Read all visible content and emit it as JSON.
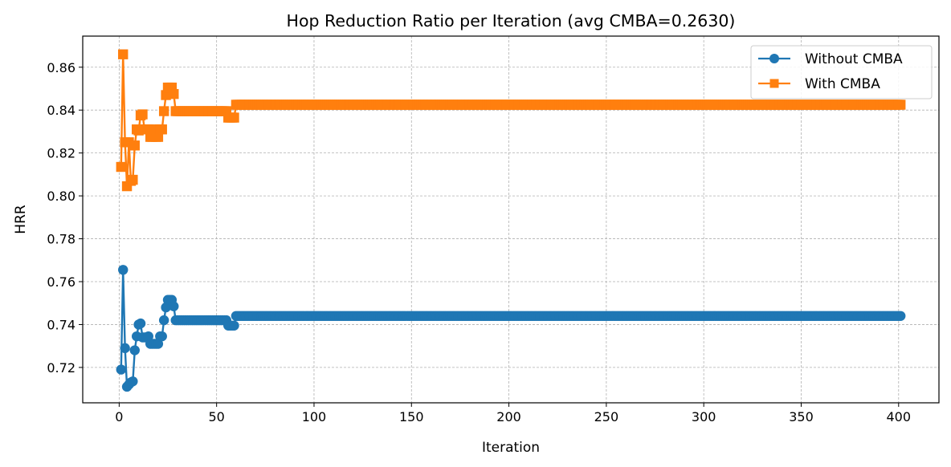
{
  "chart_data": {
    "type": "line",
    "title": "Hop Reduction Ratio per Iteration (avg CMBA=0.2630)",
    "xlabel": "Iteration",
    "ylabel": "HRR",
    "xlim": [
      -18.7,
      420.7
    ],
    "ylim": [
      0.7035,
      0.8745
    ],
    "xticks": [
      0,
      50,
      100,
      150,
      200,
      250,
      300,
      350,
      400
    ],
    "yticks": [
      0.72,
      0.74,
      0.76,
      0.78,
      0.8,
      0.82,
      0.84,
      0.86
    ],
    "grid": true,
    "legend_position": "top-right",
    "series": [
      {
        "name": "Without CMBA",
        "color": "#1f77b4",
        "marker": "circle",
        "points": [
          [
            1,
            0.719
          ],
          [
            2,
            0.7655
          ],
          [
            3,
            0.729
          ],
          [
            4,
            0.711
          ],
          [
            5,
            0.712
          ],
          [
            6,
            0.713
          ],
          [
            7,
            0.7135
          ],
          [
            8,
            0.728
          ],
          [
            9,
            0.7345
          ],
          [
            10,
            0.74
          ],
          [
            11,
            0.7405
          ],
          [
            12,
            0.734
          ],
          [
            13,
            0.734
          ],
          [
            14,
            0.734
          ],
          [
            15,
            0.7345
          ],
          [
            16,
            0.731
          ],
          [
            17,
            0.731
          ],
          [
            18,
            0.731
          ],
          [
            19,
            0.731
          ],
          [
            20,
            0.731
          ],
          [
            21,
            0.7345
          ],
          [
            22,
            0.7345
          ],
          [
            23,
            0.742
          ],
          [
            24,
            0.748
          ],
          [
            25,
            0.7515
          ],
          [
            26,
            0.7515
          ],
          [
            27,
            0.7515
          ],
          [
            28,
            0.7485
          ],
          [
            29,
            0.742
          ],
          [
            30,
            0.742
          ],
          [
            40,
            0.742
          ],
          [
            50,
            0.742
          ],
          [
            55,
            0.742
          ],
          [
            56,
            0.7395
          ],
          [
            58,
            0.7395
          ],
          [
            59,
            0.7395
          ],
          [
            60,
            0.744
          ],
          [
            100,
            0.744
          ],
          [
            200,
            0.744
          ],
          [
            300,
            0.744
          ],
          [
            401,
            0.744
          ]
        ]
      },
      {
        "name": "With CMBA",
        "color": "#ff7f0e",
        "marker": "square",
        "points": [
          [
            1,
            0.8135
          ],
          [
            2,
            0.866
          ],
          [
            3,
            0.825
          ],
          [
            4,
            0.8045
          ],
          [
            5,
            0.825
          ],
          [
            6,
            0.807
          ],
          [
            7,
            0.8075
          ],
          [
            8,
            0.8235
          ],
          [
            9,
            0.831
          ],
          [
            10,
            0.8305
          ],
          [
            11,
            0.8375
          ],
          [
            12,
            0.838
          ],
          [
            13,
            0.831
          ],
          [
            14,
            0.831
          ],
          [
            15,
            0.831
          ],
          [
            16,
            0.8275
          ],
          [
            17,
            0.8275
          ],
          [
            18,
            0.831
          ],
          [
            19,
            0.8275
          ],
          [
            20,
            0.8275
          ],
          [
            21,
            0.831
          ],
          [
            22,
            0.831
          ],
          [
            23,
            0.8395
          ],
          [
            24,
            0.847
          ],
          [
            25,
            0.8505
          ],
          [
            26,
            0.8505
          ],
          [
            27,
            0.8505
          ],
          [
            28,
            0.8475
          ],
          [
            29,
            0.8395
          ],
          [
            30,
            0.8395
          ],
          [
            40,
            0.8395
          ],
          [
            50,
            0.8395
          ],
          [
            55,
            0.8395
          ],
          [
            56,
            0.8365
          ],
          [
            58,
            0.8365
          ],
          [
            59,
            0.8365
          ],
          [
            60,
            0.8425
          ],
          [
            100,
            0.8425
          ],
          [
            200,
            0.8425
          ],
          [
            300,
            0.8425
          ],
          [
            401,
            0.8425
          ]
        ]
      }
    ]
  }
}
